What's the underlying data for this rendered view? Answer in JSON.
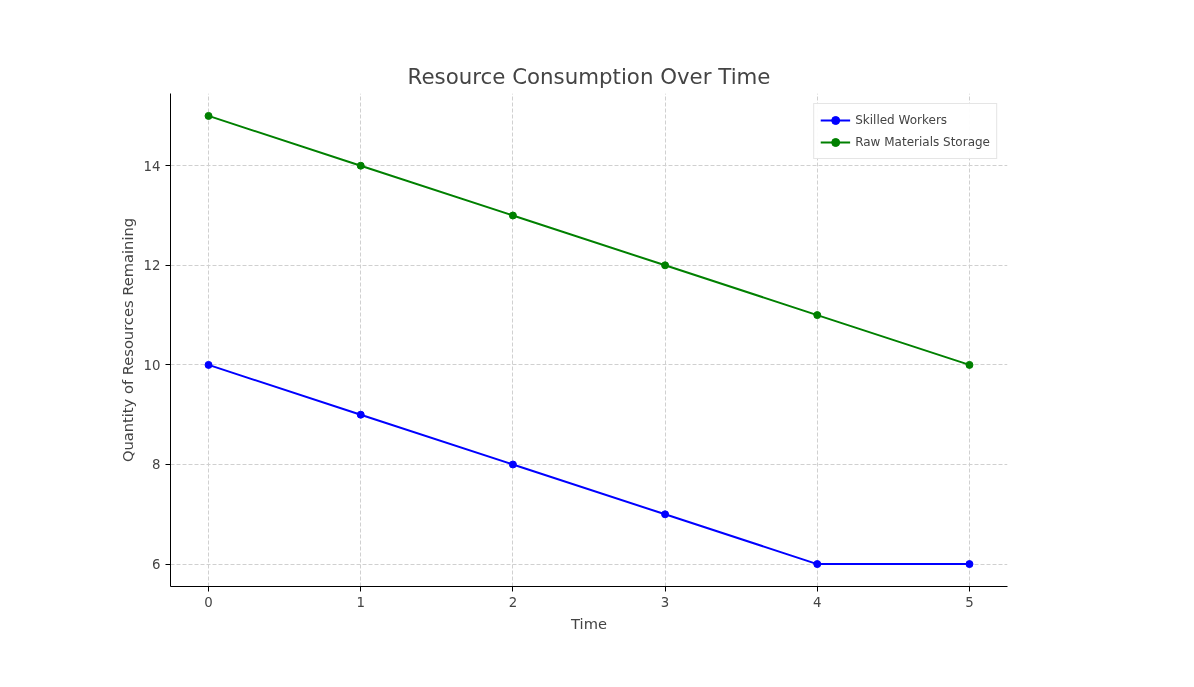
{
  "chart_data": {
    "type": "line",
    "title": "Resource Consumption Over Time",
    "xlabel": "Time",
    "ylabel": "Quantity of Resources Remaining",
    "x": [
      0,
      1,
      2,
      3,
      4,
      5
    ],
    "series": [
      {
        "name": "Skilled Workers",
        "color": "#0000ff",
        "values": [
          10,
          9,
          8,
          7,
          6,
          6
        ]
      },
      {
        "name": "Raw Materials Storage",
        "color": "#008000",
        "values": [
          15,
          14,
          13,
          12,
          11,
          10
        ]
      }
    ],
    "xlim": [
      -0.25,
      5.25
    ],
    "ylim": [
      5.55,
      15.45
    ],
    "xticks": [
      0,
      1,
      2,
      3,
      4,
      5
    ],
    "yticks": [
      6,
      8,
      10,
      12,
      14
    ],
    "grid": true,
    "legend": "top right",
    "marker": "circle",
    "line_style": "solid"
  }
}
